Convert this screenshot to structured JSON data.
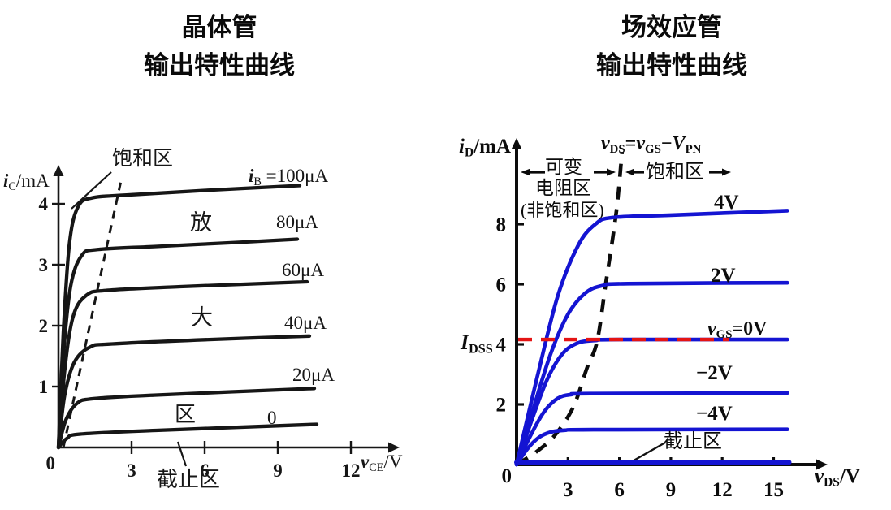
{
  "titles": {
    "left": [
      "晶体管",
      "输出特性曲线"
    ],
    "right": [
      "场效应管",
      "输出特性曲线"
    ]
  },
  "chart_data": [
    {
      "id": "bjt",
      "type": "line",
      "title": "晶体管输出特性曲线",
      "xlabel": "vCE/V",
      "ylabel": "iC/mA",
      "xlabel_rich": [
        {
          "t": "v",
          "s": "bi"
        },
        {
          "t": "CE",
          "s": "sub"
        },
        {
          "t": "/V",
          "s": "n"
        }
      ],
      "ylabel_rich": [
        {
          "t": "i",
          "s": "bi"
        },
        {
          "t": "C",
          "s": "sub"
        },
        {
          "t": "/mA",
          "s": "n"
        }
      ],
      "xlim": [
        0,
        13.8
      ],
      "ylim": [
        0,
        4.6
      ],
      "x_ticks": [
        3,
        6,
        9,
        12
      ],
      "y_ticks": [
        1,
        2,
        3,
        4
      ],
      "origin_label": "0",
      "grid": false,
      "curve_color": "#161616",
      "series": [
        {
          "name": "iB=100uA",
          "ib_uA": 100,
          "label_rich": [
            {
              "t": "i",
              "s": "bi"
            },
            {
              "t": "B",
              "s": "sub"
            },
            {
              "t": " =100μA",
              "s": "n"
            }
          ],
          "points": [
            [
              0,
              0
            ],
            [
              0.2,
              1.9
            ],
            [
              0.45,
              3.35
            ],
            [
              0.8,
              3.95
            ],
            [
              1.4,
              4.1
            ],
            [
              3,
              4.15
            ],
            [
              6,
              4.22
            ],
            [
              9.9,
              4.3
            ]
          ]
        },
        {
          "name": "iB=80uA",
          "ib_uA": 80,
          "label": "80μA",
          "points": [
            [
              0,
              0
            ],
            [
              0.2,
              1.5
            ],
            [
              0.5,
              2.65
            ],
            [
              0.95,
              3.15
            ],
            [
              1.6,
              3.25
            ],
            [
              4,
              3.3
            ],
            [
              7,
              3.36
            ],
            [
              9.8,
              3.42
            ]
          ]
        },
        {
          "name": "iB=60uA",
          "ib_uA": 60,
          "label": "60μA",
          "points": [
            [
              0,
              0
            ],
            [
              0.25,
              1.25
            ],
            [
              0.6,
              2.15
            ],
            [
              1.15,
              2.5
            ],
            [
              2,
              2.58
            ],
            [
              5,
              2.64
            ],
            [
              10.2,
              2.72
            ]
          ]
        },
        {
          "name": "iB=40uA",
          "ib_uA": 40,
          "label": "40μA",
          "points": [
            [
              0,
              0
            ],
            [
              0.25,
              0.85
            ],
            [
              0.65,
              1.4
            ],
            [
              1.3,
              1.65
            ],
            [
              2.2,
              1.7
            ],
            [
              6,
              1.77
            ],
            [
              10.3,
              1.83
            ]
          ]
        },
        {
          "name": "iB=20uA",
          "ib_uA": 20,
          "label": "20μA",
          "points": [
            [
              0,
              0
            ],
            [
              0.3,
              0.45
            ],
            [
              0.75,
              0.72
            ],
            [
              1.4,
              0.8
            ],
            [
              4,
              0.86
            ],
            [
              10.5,
              0.97
            ]
          ]
        },
        {
          "name": "iB=0",
          "ib_uA": 0,
          "label": "0",
          "points": [
            [
              0,
              0
            ],
            [
              0.35,
              0.15
            ],
            [
              0.9,
              0.22
            ],
            [
              4,
              0.28
            ],
            [
              10.6,
              0.38
            ]
          ]
        }
      ],
      "boundary_dashed": {
        "name": "saturation-boundary",
        "points": [
          [
            0.2,
            0
          ],
          [
            2.55,
            4.35
          ]
        ]
      },
      "regions": {
        "saturation": "饱和区",
        "active_chars": [
          "放",
          "大",
          "区"
        ],
        "cutoff": "截止区"
      }
    },
    {
      "id": "fet",
      "type": "line",
      "title": "场效应管输出特性曲线",
      "xlabel": "vDS/V",
      "ylabel": "iD/mA",
      "xlabel_rich": [
        {
          "t": "v",
          "s": "bi"
        },
        {
          "t": "DS",
          "s": "subb"
        },
        {
          "t": "/V",
          "s": "b"
        }
      ],
      "ylabel_rich": [
        {
          "t": "i",
          "s": "bi"
        },
        {
          "t": "D",
          "s": "subb"
        },
        {
          "t": "/mA",
          "s": "b"
        }
      ],
      "xlim": [
        0,
        17
      ],
      "ylim": [
        0,
        11
      ],
      "x_ticks": [
        3,
        6,
        9,
        12,
        15
      ],
      "y_ticks": [
        2,
        4,
        6,
        8
      ],
      "origin_label": "0",
      "grid": false,
      "curve_color": "#1414d2",
      "equation_rich": [
        {
          "t": "v",
          "s": "bi"
        },
        {
          "t": "DS",
          "s": "subb"
        },
        {
          "t": "=",
          "s": "b"
        },
        {
          "t": "v",
          "s": "bi"
        },
        {
          "t": "GS",
          "s": "subb"
        },
        {
          "t": "−",
          "s": "b"
        },
        {
          "t": "V",
          "s": "bi"
        },
        {
          "t": "PN",
          "s": "subb"
        }
      ],
      "idss_rich": [
        {
          "t": "I",
          "s": "bi"
        },
        {
          "t": "DSS",
          "s": "subb"
        }
      ],
      "idss_line": {
        "level_mA": 4.16,
        "end_v": 12.4,
        "color": "#e41414"
      },
      "series": [
        {
          "name": "vGS=4V",
          "vgs_V": 4,
          "label": "4V",
          "points": [
            [
              0,
              0
            ],
            [
              1.2,
              2.9
            ],
            [
              2.4,
              5.6
            ],
            [
              3.6,
              7.3
            ],
            [
              4.6,
              8.0
            ],
            [
              5.6,
              8.22
            ],
            [
              9,
              8.3
            ],
            [
              15.8,
              8.45
            ]
          ]
        },
        {
          "name": "vGS=2V",
          "vgs_V": 2,
          "label": "2V",
          "points": [
            [
              0,
              0
            ],
            [
              1.0,
              1.9
            ],
            [
              2.0,
              3.7
            ],
            [
              3.0,
              5.0
            ],
            [
              4.0,
              5.7
            ],
            [
              5.0,
              5.95
            ],
            [
              6.5,
              6.02
            ],
            [
              15.8,
              6.05
            ]
          ]
        },
        {
          "name": "vGS=0V",
          "vgs_V": 0,
          "label_rich": [
            {
              "t": "v",
              "s": "bi"
            },
            {
              "t": "GS",
              "s": "subb"
            },
            {
              "t": "=0V",
              "s": "b"
            }
          ],
          "points": [
            [
              0,
              0
            ],
            [
              0.9,
              1.5
            ],
            [
              1.8,
              2.85
            ],
            [
              2.7,
              3.7
            ],
            [
              3.6,
              4.05
            ],
            [
              4.6,
              4.13
            ],
            [
              6,
              4.16
            ],
            [
              15.8,
              4.16
            ]
          ]
        },
        {
          "name": "vGS=-2V",
          "vgs_V": -2,
          "label": "−2V",
          "points": [
            [
              0,
              0
            ],
            [
              0.8,
              0.95
            ],
            [
              1.6,
              1.75
            ],
            [
              2.4,
              2.2
            ],
            [
              3.2,
              2.33
            ],
            [
              4.5,
              2.36
            ],
            [
              15.8,
              2.38
            ]
          ]
        },
        {
          "name": "vGS=-4V",
          "vgs_V": -4,
          "label": "−4V",
          "points": [
            [
              0,
              0
            ],
            [
              0.6,
              0.5
            ],
            [
              1.3,
              0.9
            ],
            [
              2.0,
              1.08
            ],
            [
              2.8,
              1.14
            ],
            [
              4.5,
              1.16
            ],
            [
              15.8,
              1.17
            ]
          ]
        },
        {
          "name": "cutoff-curve",
          "label": "",
          "width": 6,
          "points": [
            [
              0,
              0.07
            ],
            [
              8,
              0.07
            ],
            [
              15.9,
              0.07
            ]
          ]
        }
      ],
      "boundary_dashed": {
        "name": "vds-equals-vgs-minus-vpn-locus",
        "points": [
          [
            0,
            0
          ],
          [
            1.1,
            0.4
          ],
          [
            2.2,
            0.95
          ],
          [
            3.3,
            1.9
          ],
          [
            4.1,
            3.2
          ],
          [
            4.7,
            4.1
          ],
          [
            5.2,
            6.0
          ],
          [
            5.6,
            7.5
          ],
          [
            5.9,
            8.8
          ],
          [
            6.15,
            10.4
          ]
        ]
      },
      "regions": {
        "ohmic_lines": [
          "可变",
          "电阻区",
          "(非饱和区)"
        ],
        "saturation": "饱和区",
        "cutoff": "截止区"
      }
    }
  ]
}
